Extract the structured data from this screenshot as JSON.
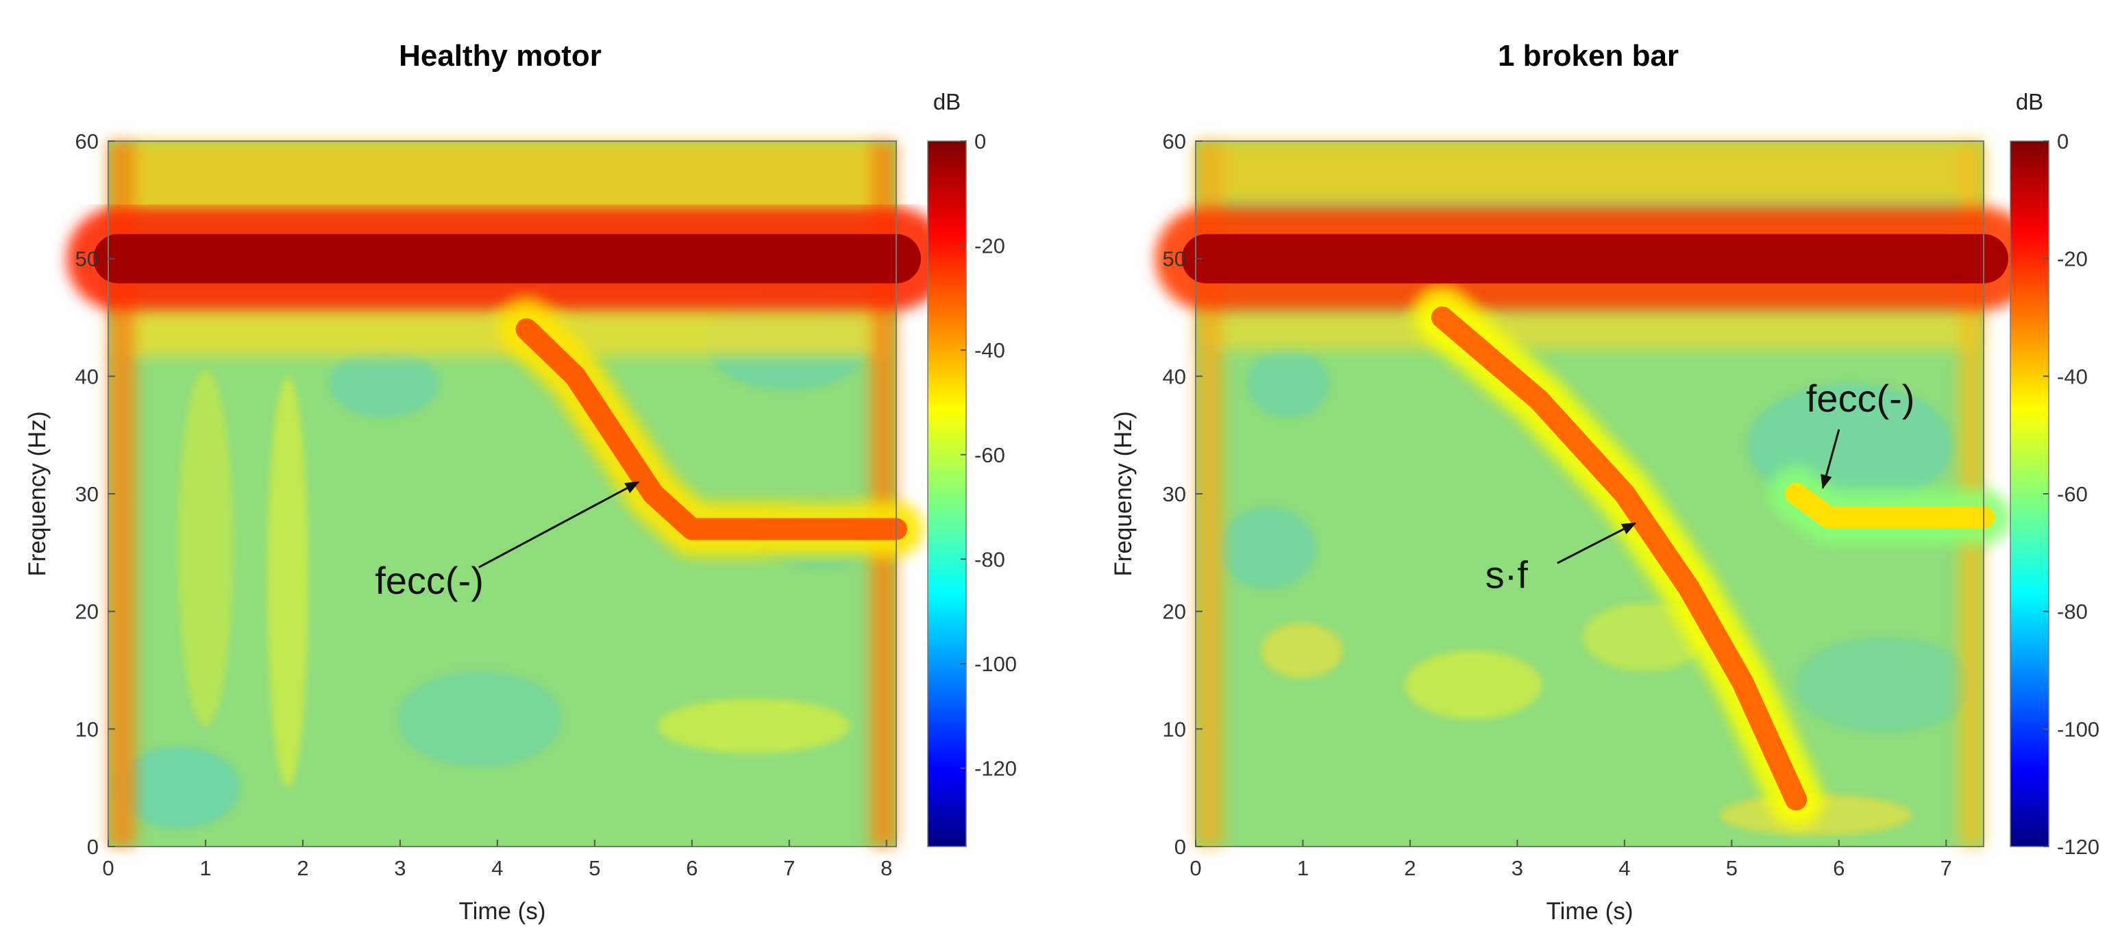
{
  "chart_data": [
    {
      "type": "heatmap",
      "title": "Healthy motor",
      "xlabel": "Time (s)",
      "ylabel": "Frequency (Hz)",
      "xlim": [
        0,
        8.1
      ],
      "ylim": [
        0,
        60
      ],
      "x_ticks": [
        0,
        1,
        2,
        3,
        4,
        5,
        6,
        7,
        8
      ],
      "y_ticks": [
        0,
        10,
        20,
        30,
        40,
        50,
        60
      ],
      "colorbar": {
        "label": "dB",
        "range": [
          -135,
          0
        ],
        "ticks": [
          0,
          -20,
          -40,
          -60,
          -80,
          -100,
          -120
        ]
      },
      "colormap": "jet",
      "features": [
        {
          "name": "supply",
          "value_db": -5,
          "points": [
            [
              0.1,
              50
            ],
            [
              8.1,
              50
            ]
          ]
        },
        {
          "name": "fecc(-)",
          "value_db": -30,
          "points": [
            [
              4.3,
              44
            ],
            [
              4.8,
              40
            ],
            [
              5.2,
              35
            ],
            [
              5.6,
              30
            ],
            [
              6.0,
              27
            ],
            [
              8.1,
              27
            ]
          ]
        }
      ],
      "annotations": [
        {
          "text": "fecc(-)",
          "text_at": [
            3.3,
            21.5
          ],
          "arrow_to": [
            5.45,
            31
          ]
        }
      ]
    },
    {
      "type": "heatmap",
      "title": "1 broken bar",
      "xlabel": "Time (s)",
      "ylabel": "Frequency (Hz)",
      "xlim": [
        0,
        7.35
      ],
      "ylim": [
        0,
        60
      ],
      "x_ticks": [
        0,
        1,
        2,
        3,
        4,
        5,
        6,
        7
      ],
      "y_ticks": [
        0,
        10,
        20,
        30,
        40,
        50,
        60
      ],
      "colorbar": {
        "label": "dB",
        "range": [
          -120,
          0
        ],
        "ticks": [
          0,
          -20,
          -40,
          -60,
          -80,
          -100,
          -120
        ]
      },
      "colormap": "jet",
      "features": [
        {
          "name": "supply",
          "value_db": -5,
          "points": [
            [
              0.1,
              50
            ],
            [
              7.35,
              50
            ]
          ]
        },
        {
          "name": "s·f",
          "value_db": -28,
          "points": [
            [
              2.3,
              45
            ],
            [
              3.2,
              38
            ],
            [
              4.0,
              30
            ],
            [
              4.6,
              22
            ],
            [
              5.1,
              14
            ],
            [
              5.4,
              8
            ],
            [
              5.6,
              4
            ]
          ]
        },
        {
          "name": "fecc(-)",
          "value_db": -42,
          "points": [
            [
              5.6,
              30
            ],
            [
              5.9,
              28
            ],
            [
              7.35,
              28
            ]
          ]
        }
      ],
      "annotations": [
        {
          "text": "s·f",
          "text_at": [
            2.9,
            22
          ],
          "arrow_to": [
            4.1,
            27.5
          ]
        },
        {
          "text": "fecc(-)",
          "text_at": [
            6.2,
            37
          ],
          "arrow_to": [
            5.85,
            30.5
          ]
        }
      ]
    }
  ]
}
